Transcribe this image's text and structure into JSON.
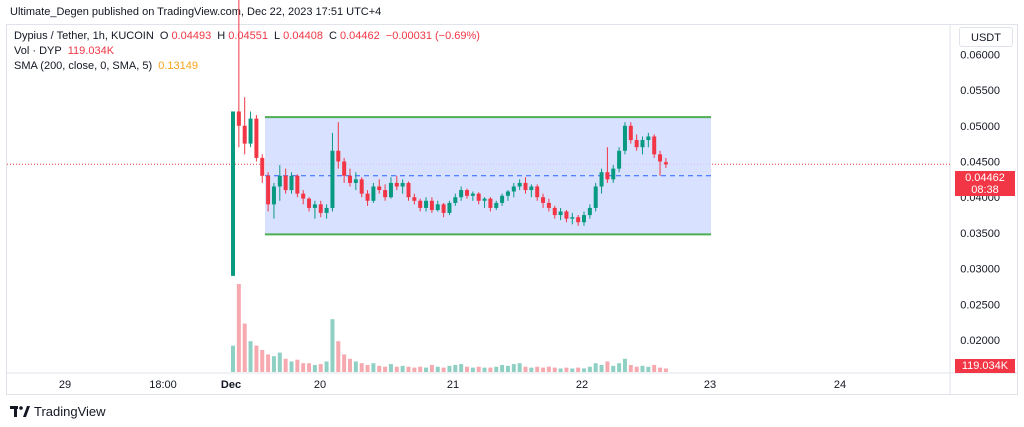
{
  "header": {
    "published_text": "Ultimate_Degen published on TradingView.com, Dec 22, 2023 17:51 UTC+4"
  },
  "legend": {
    "title": "Dypius / Tether, 1h, KUCOIN",
    "ohlc": {
      "o_label": "O",
      "o_value": "0.04493",
      "h_label": "H",
      "h_value": "0.04551",
      "l_label": "L",
      "l_value": "0.04408",
      "c_label": "C",
      "c_value": "0.04462",
      "change": "−0.00031 (−0.69%)"
    },
    "volume_label": "Vol · DYP",
    "volume_value": "119.034K",
    "sma_label": "SMA (200, close, 0, SMA, 5)",
    "sma_value": "0.13149"
  },
  "toolbar": {
    "currency_label": "USDT"
  },
  "price_axis": {
    "ticks": [
      "0.06000",
      "0.05500",
      "0.05000",
      "0.04500",
      "0.04000",
      "0.03500",
      "0.03000",
      "0.02500",
      "0.02000"
    ],
    "current_price": "0.04462",
    "countdown": "08:38",
    "volume_tag": "119.034K"
  },
  "time_axis": {
    "ticks": [
      "29",
      "18:00",
      "Dec",
      "20",
      "21",
      "22",
      "23",
      "24"
    ]
  },
  "footer": {
    "logo_text": "TradingView"
  },
  "colors": {
    "up": "#089981",
    "down": "#f23645",
    "range_fill": "#d1dcff",
    "range_border": "#4caf50",
    "midline": "#2962ff",
    "vol_up": "#8fd0c4",
    "vol_down": "#f7a9b0"
  },
  "chart_data": {
    "type": "candlestick",
    "symbol": "Dypius / Tether",
    "interval": "1h",
    "exchange": "KUCOIN",
    "y_range": [
      0.0154,
      0.0641
    ],
    "price_ticks": [
      0.06,
      0.055,
      0.05,
      0.045,
      0.04,
      0.035,
      0.03,
      0.025,
      0.02
    ],
    "range_box": {
      "upper": 0.0512,
      "lower": 0.0348,
      "mid": 0.043,
      "x_start": "Dec 19 ~10:00",
      "x_end": "Dec 22 ~18:00"
    },
    "candles": [
      [
        0.029,
        0.052,
        0.029,
        0.052
      ],
      [
        0.052,
        0.07,
        0.047,
        0.05
      ],
      [
        0.05,
        0.054,
        0.046,
        0.0475
      ],
      [
        0.0475,
        0.052,
        0.047,
        0.051
      ],
      [
        0.051,
        0.0515,
        0.045,
        0.0455
      ],
      [
        0.0455,
        0.046,
        0.042,
        0.043
      ],
      [
        0.043,
        0.0435,
        0.038,
        0.039
      ],
      [
        0.039,
        0.042,
        0.037,
        0.0415
      ],
      [
        0.0415,
        0.0445,
        0.0395,
        0.043
      ],
      [
        0.043,
        0.044,
        0.0405,
        0.041
      ],
      [
        0.041,
        0.0435,
        0.0405,
        0.043
      ],
      [
        0.043,
        0.0432,
        0.04,
        0.0405
      ],
      [
        0.0405,
        0.041,
        0.039,
        0.0398
      ],
      [
        0.0398,
        0.04,
        0.038,
        0.0385
      ],
      [
        0.0385,
        0.0395,
        0.037,
        0.039
      ],
      [
        0.039,
        0.0395,
        0.0372,
        0.0378
      ],
      [
        0.0378,
        0.039,
        0.037,
        0.0385
      ],
      [
        0.0385,
        0.049,
        0.038,
        0.0465
      ],
      [
        0.0465,
        0.0505,
        0.044,
        0.045
      ],
      [
        0.045,
        0.0455,
        0.042,
        0.043
      ],
      [
        0.043,
        0.044,
        0.0415,
        0.042
      ],
      [
        0.042,
        0.0435,
        0.041,
        0.0425
      ],
      [
        0.0425,
        0.0428,
        0.04,
        0.0405
      ],
      [
        0.0405,
        0.041,
        0.0388,
        0.0395
      ],
      [
        0.0395,
        0.042,
        0.0392,
        0.0415
      ],
      [
        0.0415,
        0.0425,
        0.0405,
        0.041
      ],
      [
        0.041,
        0.0418,
        0.0395,
        0.04
      ],
      [
        0.04,
        0.0428,
        0.0398,
        0.042
      ],
      [
        0.042,
        0.043,
        0.041,
        0.0415
      ],
      [
        0.0415,
        0.0425,
        0.0405,
        0.042
      ],
      [
        0.042,
        0.0422,
        0.0395,
        0.04
      ],
      [
        0.04,
        0.0405,
        0.039,
        0.0395
      ],
      [
        0.0395,
        0.0398,
        0.038,
        0.0385
      ],
      [
        0.0385,
        0.04,
        0.038,
        0.0395
      ],
      [
        0.0395,
        0.04,
        0.0378,
        0.0382
      ],
      [
        0.0382,
        0.0395,
        0.038,
        0.039
      ],
      [
        0.039,
        0.0392,
        0.0372,
        0.0378
      ],
      [
        0.0378,
        0.0395,
        0.0375,
        0.0392
      ],
      [
        0.0392,
        0.0405,
        0.0388,
        0.04
      ],
      [
        0.04,
        0.0415,
        0.0395,
        0.041
      ],
      [
        0.041,
        0.0412,
        0.0398,
        0.0402
      ],
      [
        0.0402,
        0.0408,
        0.0395,
        0.0405
      ],
      [
        0.0405,
        0.0407,
        0.039,
        0.0395
      ],
      [
        0.0395,
        0.04,
        0.0385,
        0.0398
      ],
      [
        0.0398,
        0.04,
        0.038,
        0.0385
      ],
      [
        0.0385,
        0.0395,
        0.0382,
        0.0392
      ],
      [
        0.0392,
        0.0405,
        0.0388,
        0.0402
      ],
      [
        0.0402,
        0.041,
        0.0395,
        0.0408
      ],
      [
        0.0408,
        0.042,
        0.04,
        0.0415
      ],
      [
        0.0415,
        0.0425,
        0.041,
        0.042
      ],
      [
        0.042,
        0.0428,
        0.0405,
        0.041
      ],
      [
        0.041,
        0.0418,
        0.04,
        0.0415
      ],
      [
        0.0415,
        0.0418,
        0.0395,
        0.04
      ],
      [
        0.04,
        0.0405,
        0.0385,
        0.0392
      ],
      [
        0.0392,
        0.0398,
        0.038,
        0.0385
      ],
      [
        0.0385,
        0.0388,
        0.037,
        0.0375
      ],
      [
        0.0375,
        0.0385,
        0.0368,
        0.038
      ],
      [
        0.038,
        0.0382,
        0.0365,
        0.037
      ],
      [
        0.037,
        0.0378,
        0.0362,
        0.0372
      ],
      [
        0.0372,
        0.0375,
        0.036,
        0.0365
      ],
      [
        0.0365,
        0.038,
        0.036,
        0.0375
      ],
      [
        0.0375,
        0.039,
        0.037,
        0.0385
      ],
      [
        0.0385,
        0.042,
        0.038,
        0.0415
      ],
      [
        0.0415,
        0.044,
        0.0405,
        0.0435
      ],
      [
        0.0435,
        0.047,
        0.042,
        0.0425
      ],
      [
        0.0425,
        0.0445,
        0.042,
        0.044
      ],
      [
        0.044,
        0.047,
        0.0435,
        0.0465
      ],
      [
        0.0465,
        0.0505,
        0.046,
        0.05
      ],
      [
        0.05,
        0.0505,
        0.0475,
        0.048
      ],
      [
        0.048,
        0.0488,
        0.0465,
        0.047
      ],
      [
        0.047,
        0.0485,
        0.046,
        0.048
      ],
      [
        0.048,
        0.049,
        0.047,
        0.0485
      ],
      [
        0.0485,
        0.0488,
        0.0455,
        0.046
      ],
      [
        0.046,
        0.0465,
        0.043,
        0.045
      ],
      [
        0.0449,
        0.0455,
        0.0441,
        0.0446
      ]
    ],
    "volumes": [
      0.3,
      1.0,
      0.55,
      0.35,
      0.3,
      0.25,
      0.2,
      0.18,
      0.22,
      0.15,
      0.12,
      0.14,
      0.1,
      0.1,
      0.08,
      0.09,
      0.12,
      0.6,
      0.35,
      0.2,
      0.15,
      0.12,
      0.1,
      0.08,
      0.1,
      0.07,
      0.06,
      0.09,
      0.06,
      0.07,
      0.06,
      0.05,
      0.06,
      0.05,
      0.08,
      0.06,
      0.05,
      0.07,
      0.08,
      0.09,
      0.06,
      0.05,
      0.06,
      0.05,
      0.05,
      0.06,
      0.08,
      0.07,
      0.09,
      0.1,
      0.06,
      0.05,
      0.06,
      0.05,
      0.06,
      0.05,
      0.04,
      0.05,
      0.04,
      0.05,
      0.04,
      0.06,
      0.1,
      0.08,
      0.12,
      0.07,
      0.1,
      0.15,
      0.08,
      0.06,
      0.07,
      0.06,
      0.08,
      0.05,
      0.04
    ]
  }
}
